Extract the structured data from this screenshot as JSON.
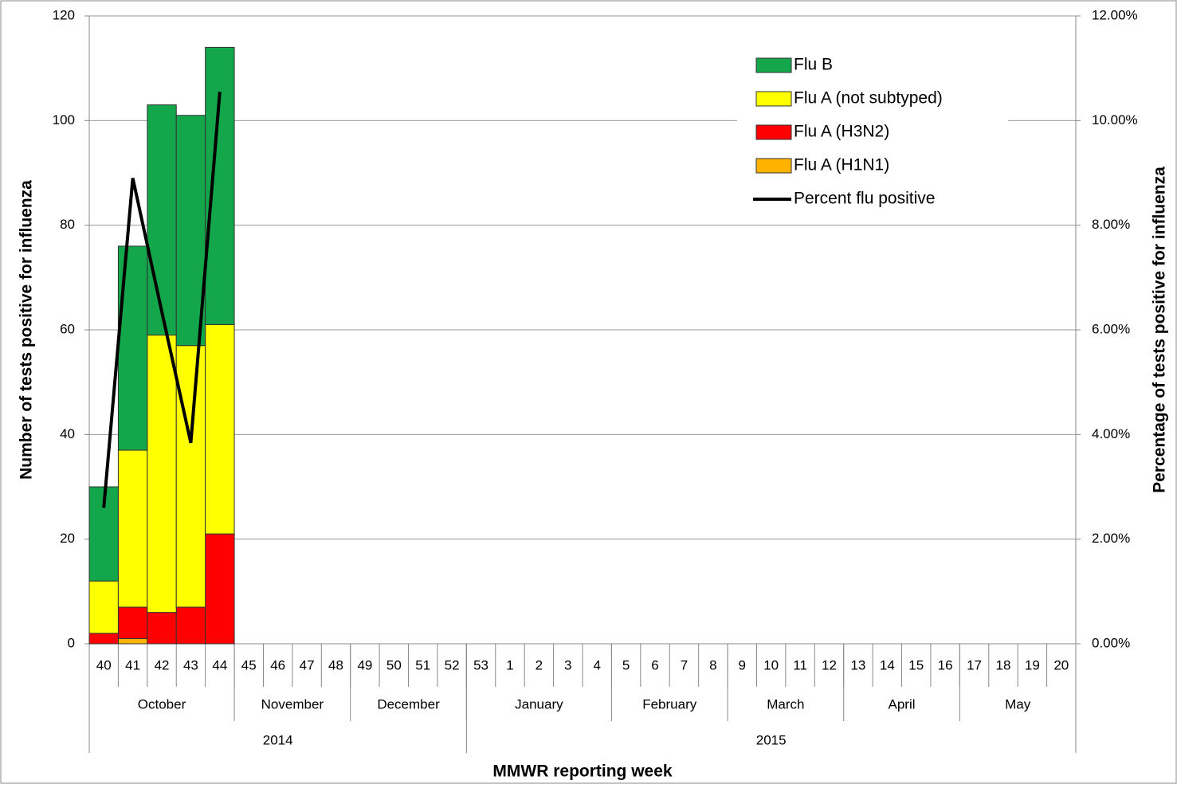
{
  "chart_data": {
    "type": "bar",
    "stacked": true,
    "x_label": "MMWR reporting week",
    "y_label": "Number of tests positive for influenza",
    "y2_label": "Percentage of  tests positive for influenza",
    "categories": [
      "40",
      "41",
      "42",
      "43",
      "44",
      "45",
      "46",
      "47",
      "48",
      "49",
      "50",
      "51",
      "52",
      "53",
      "1",
      "2",
      "3",
      "4",
      "5",
      "6",
      "7",
      "8",
      "9",
      "10",
      "11",
      "12",
      "13",
      "14",
      "15",
      "16",
      "17",
      "18",
      "19",
      "20"
    ],
    "month_groups": [
      {
        "label": "October",
        "count": 5
      },
      {
        "label": "November",
        "count": 4
      },
      {
        "label": "December",
        "count": 4
      },
      {
        "label": "January",
        "count": 5
      },
      {
        "label": "February",
        "count": 4
      },
      {
        "label": "March",
        "count": 4
      },
      {
        "label": "April",
        "count": 4
      },
      {
        "label": "May",
        "count": 4
      }
    ],
    "year_groups": [
      {
        "label": "2014",
        "count": 13
      },
      {
        "label": "2015",
        "count": 21
      }
    ],
    "series": [
      {
        "name": "Flu A (H1N1)",
        "color": "#ffb300",
        "values": [
          0,
          1,
          0,
          0,
          0,
          null,
          null,
          null,
          null,
          null,
          null,
          null,
          null,
          null,
          null,
          null,
          null,
          null,
          null,
          null,
          null,
          null,
          null,
          null,
          null,
          null,
          null,
          null,
          null,
          null,
          null,
          null,
          null,
          null
        ]
      },
      {
        "name": "Flu A (H3N2)",
        "color": "#ff0000",
        "values": [
          2,
          6,
          6,
          7,
          21,
          null,
          null,
          null,
          null,
          null,
          null,
          null,
          null,
          null,
          null,
          null,
          null,
          null,
          null,
          null,
          null,
          null,
          null,
          null,
          null,
          null,
          null,
          null,
          null,
          null,
          null,
          null,
          null,
          null
        ]
      },
      {
        "name": "Flu A (not subtyped)",
        "color": "#ffff00",
        "values": [
          10,
          30,
          53,
          50,
          40,
          null,
          null,
          null,
          null,
          null,
          null,
          null,
          null,
          null,
          null,
          null,
          null,
          null,
          null,
          null,
          null,
          null,
          null,
          null,
          null,
          null,
          null,
          null,
          null,
          null,
          null,
          null,
          null,
          null
        ]
      },
      {
        "name": "Flu B",
        "color": "#13a64b",
        "values": [
          18,
          39,
          44,
          44,
          53,
          null,
          null,
          null,
          null,
          null,
          null,
          null,
          null,
          null,
          null,
          null,
          null,
          null,
          null,
          null,
          null,
          null,
          null,
          null,
          null,
          null,
          null,
          null,
          null,
          null,
          null,
          null,
          null,
          null
        ]
      },
      {
        "name": "Percent flu positive",
        "color": "#000000",
        "type": "line",
        "axis": "y2",
        "values": [
          2.6,
          8.9,
          6.35,
          3.84,
          10.55,
          null,
          null,
          null,
          null,
          null,
          null,
          null,
          null,
          null,
          null,
          null,
          null,
          null,
          null,
          null,
          null,
          null,
          null,
          null,
          null,
          null,
          null,
          null,
          null,
          null,
          null,
          null,
          null,
          null
        ]
      }
    ],
    "ylim": [
      0,
      120
    ],
    "yticks": [
      0,
      20,
      40,
      60,
      80,
      100,
      120
    ],
    "y2lim": [
      0,
      12
    ],
    "y2ticks": [
      {
        "value": 0,
        "label": "0.00%"
      },
      {
        "value": 2,
        "label": "2.00%"
      },
      {
        "value": 4,
        "label": "4.00%"
      },
      {
        "value": 6,
        "label": "6.00%"
      },
      {
        "value": 8,
        "label": "8.00%"
      },
      {
        "value": 10,
        "label": "10.00%"
      },
      {
        "value": 12,
        "label": "12.00%"
      }
    ],
    "grid": true,
    "legend": "upper right"
  }
}
